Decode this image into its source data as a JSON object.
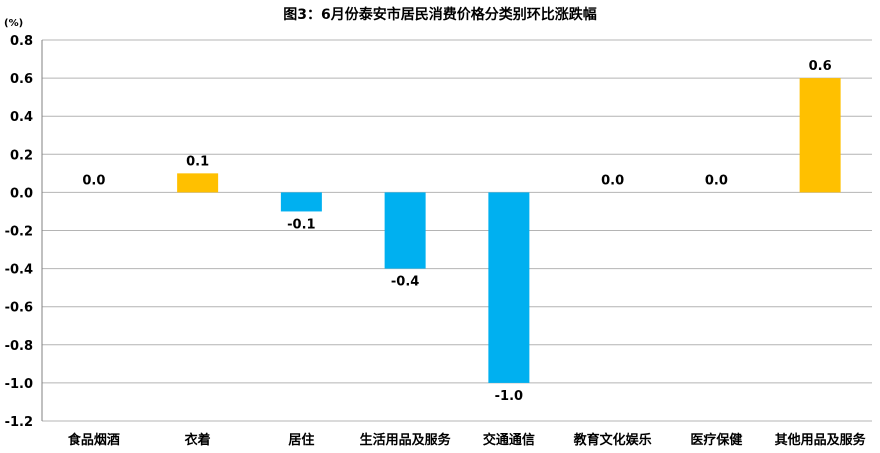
{
  "chart_data": {
    "type": "bar",
    "title": "图3：6月份泰安市居民消费价格分类别环比涨跌幅",
    "ylabel": "(%)",
    "xlabel": "",
    "categories": [
      "食品烟酒",
      "衣着",
      "居住",
      "生活用品及服务",
      "交通通信",
      "教育文化娱乐",
      "医疗保健",
      "其他用品及服务"
    ],
    "values": [
      0.0,
      0.1,
      -0.1,
      -0.4,
      -1.0,
      0.0,
      0.0,
      0.6
    ],
    "data_labels": [
      "0.0",
      "0.1",
      "-0.1",
      "-0.4",
      "-1.0",
      "0.0",
      "0.0",
      "0.6"
    ],
    "ylim": [
      -1.2,
      0.8
    ],
    "yticks": [
      "0.8",
      "0.6",
      "0.4",
      "0.2",
      "0.0",
      "-0.2",
      "-0.4",
      "-0.6",
      "-0.8",
      "-1.0",
      "-1.2"
    ],
    "ytick_values": [
      0.8,
      0.6,
      0.4,
      0.2,
      0.0,
      -0.2,
      -0.4,
      -0.6,
      -0.8,
      -1.0,
      -1.2
    ],
    "grid": true,
    "legend": "none",
    "colors": {
      "positive": "#FFC000",
      "negative": "#00B0F0",
      "grid": "#B4B4B4",
      "axis": "#808080"
    }
  }
}
